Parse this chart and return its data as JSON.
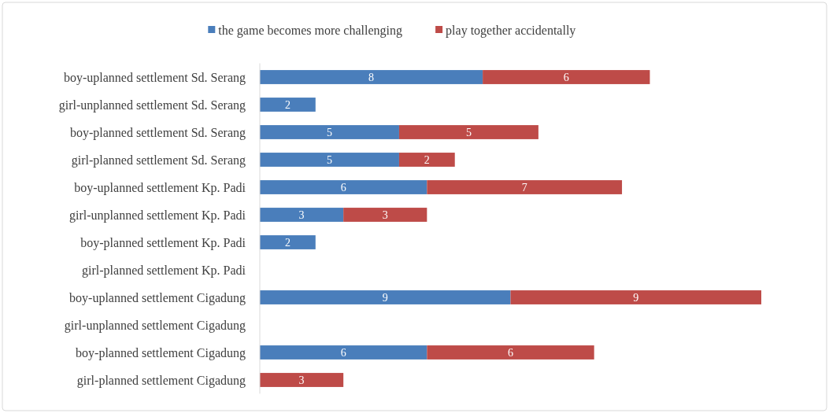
{
  "chart_data": {
    "type": "bar",
    "orientation": "horizontal",
    "stacked": true,
    "data_labels": true,
    "legend": "top",
    "tick_labels": "y",
    "categories": [
      "boy-uplanned settlement Sd. Serang",
      "girl-unplanned settlement Sd. Serang",
      "boy-planned settlement Sd. Serang",
      "girl-planned settlement Sd. Serang",
      "boy-uplanned settlement Kp. Padi",
      "girl-unplanned settlement Kp. Padi",
      "boy-planned settlement Kp. Padi",
      "girl-planned settlement Kp. Padi",
      "boy-uplanned settlement Cigadung",
      "girl-unplanned settlement Cigadung",
      "boy-planned settlement Cigadung",
      "girl-planned settlement Cigadung"
    ],
    "series": [
      {
        "name": "the game becomes more challenging",
        "color": "#4a7ebb",
        "values": [
          8,
          2,
          5,
          5,
          6,
          3,
          2,
          null,
          9,
          null,
          6,
          null
        ]
      },
      {
        "name": "play together accidentally",
        "color": "#be4b48",
        "values": [
          6,
          null,
          5,
          2,
          7,
          3,
          null,
          null,
          9,
          null,
          6,
          3
        ]
      }
    ]
  }
}
